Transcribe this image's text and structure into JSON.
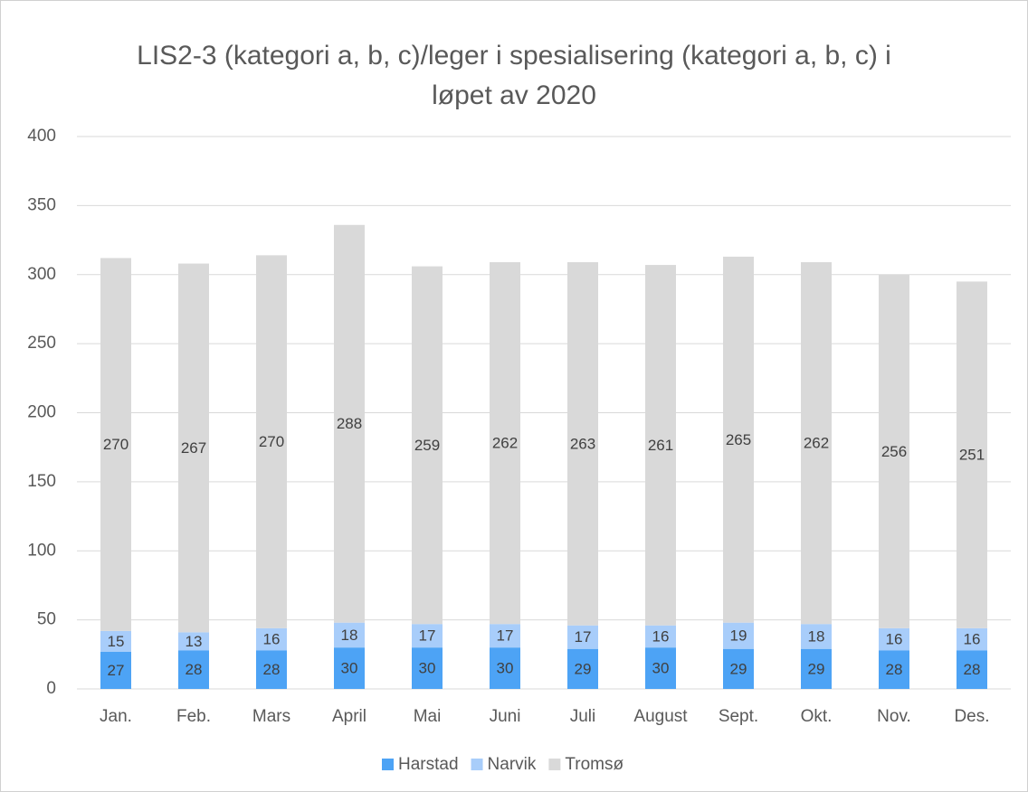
{
  "chart_data": {
    "type": "stacked_bar",
    "title": "LIS2-3 (kategori a, b, c)/leger i spesialisering (kategori a, b, c) i løpet av 2020",
    "categories": [
      "Jan.",
      "Feb.",
      "Mars",
      "April",
      "Mai",
      "Juni",
      "Juli",
      "August",
      "Sept.",
      "Okt.",
      "Nov.",
      "Des."
    ],
    "series": [
      {
        "name": "Harstad",
        "color": "#4da3f5",
        "values": [
          27,
          28,
          28,
          30,
          30,
          30,
          29,
          30,
          29,
          29,
          28,
          28
        ]
      },
      {
        "name": "Narvik",
        "color": "#a8cdfa",
        "values": [
          15,
          13,
          16,
          18,
          17,
          17,
          17,
          16,
          19,
          18,
          16,
          16
        ]
      },
      {
        "name": "Tromsø",
        "color": "#d9d9d9",
        "values": [
          270,
          267,
          270,
          288,
          259,
          262,
          263,
          261,
          265,
          262,
          256,
          251
        ]
      }
    ],
    "ylim": [
      0,
      400
    ],
    "yticks": [
      0,
      50,
      100,
      150,
      200,
      250,
      300,
      350,
      400
    ],
    "grid": true,
    "legend": "bottom"
  }
}
